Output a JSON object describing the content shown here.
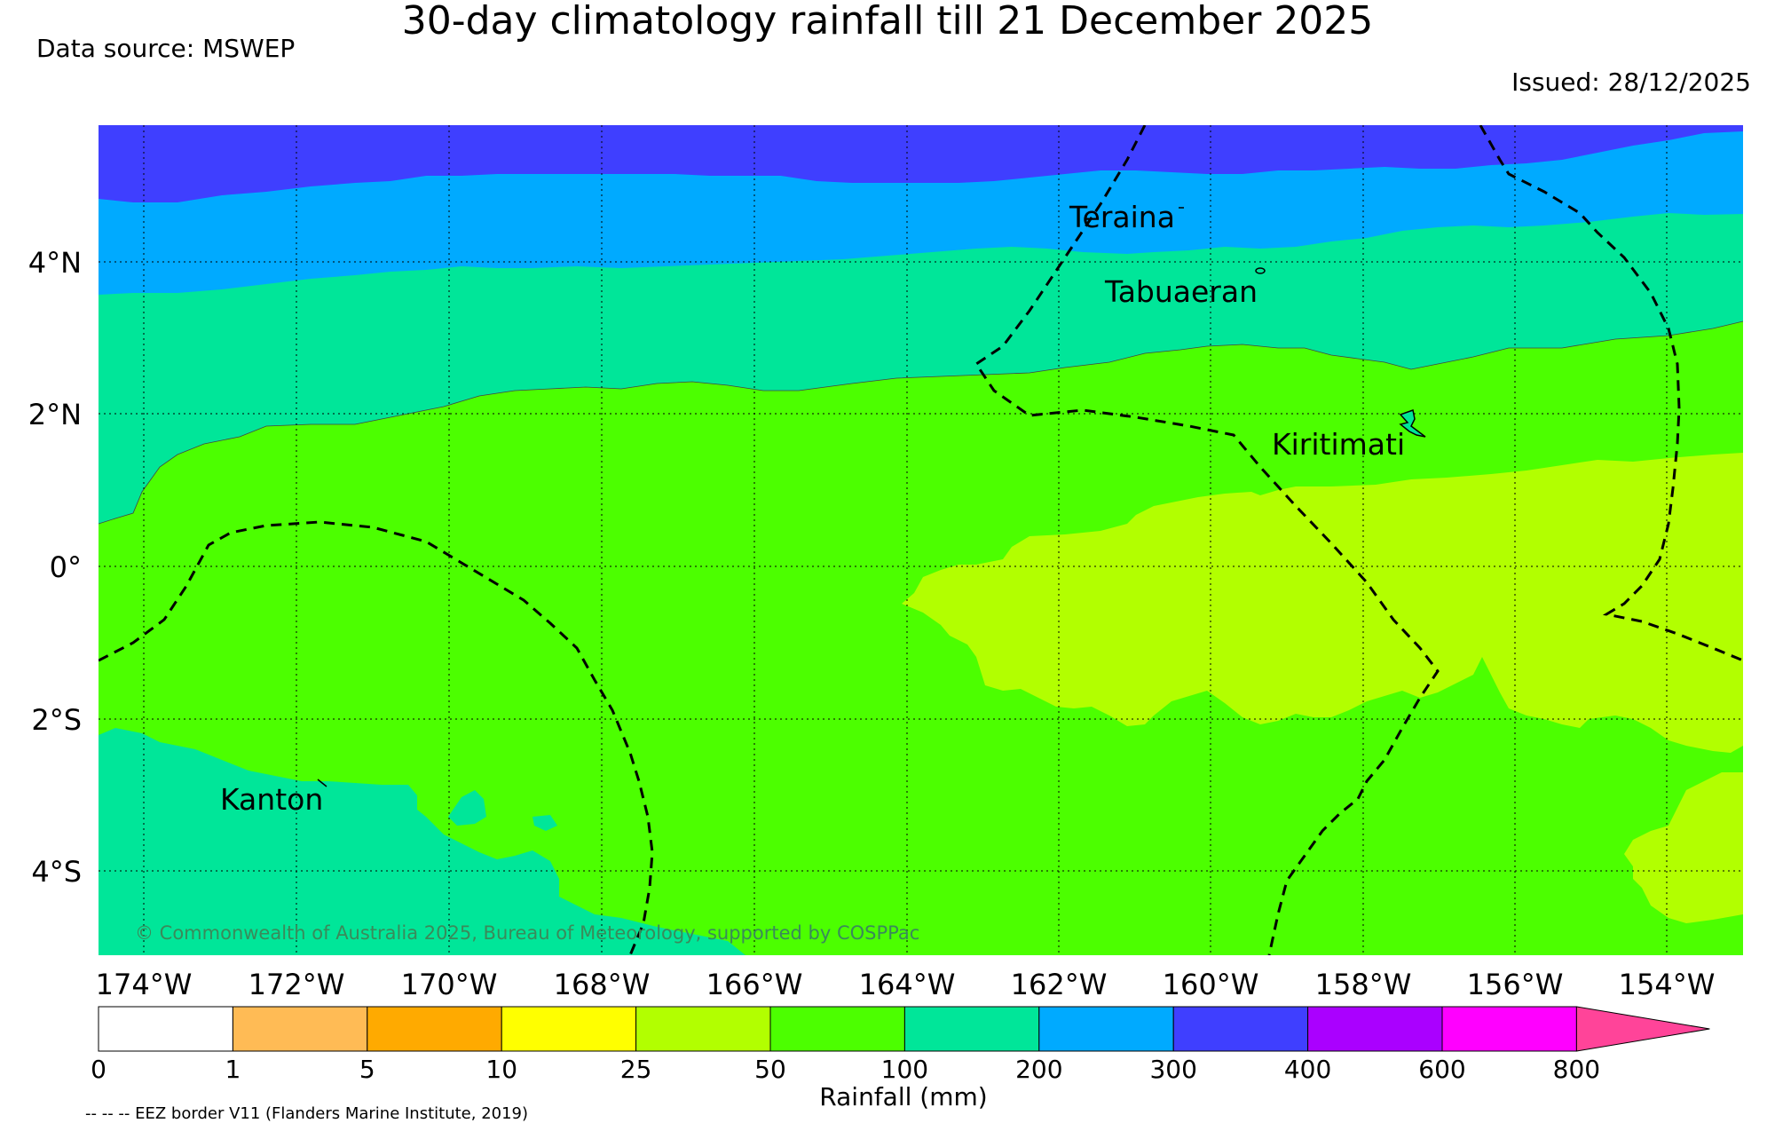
{
  "title": "30-day climatology rainfall till 21 December 2025",
  "data_source": "Data source: MSWEP",
  "issued": "Issued: 28/12/2025",
  "copyright": "© Commonwealth of Australia 2025, Bureau of Meteorology, supported by COSPPac",
  "eez_note": "-- -- -- EEZ border V11 (Flanders Marine Institute, 2019)",
  "colorbar_label": "Rainfall (mm)",
  "colorbar_ticks": [
    "0",
    "1",
    "5",
    "10",
    "25",
    "50",
    "100",
    "200",
    "300",
    "400",
    "600",
    "800"
  ],
  "colorbar_colors": [
    "#ffffff",
    "#ffbb55",
    "#ffaa00",
    "#ffff00",
    "#b2ff00",
    "#4cff00",
    "#00e699",
    "#00aaff",
    "#3f3fff",
    "#aa00ff",
    "#ff00ff",
    "#ff4499"
  ],
  "lon_labels": [
    "174°W",
    "172°W",
    "170°W",
    "168°W",
    "166°W",
    "164°W",
    "162°W",
    "160°W",
    "158°W",
    "156°W",
    "154°W"
  ],
  "lat_labels": [
    "4°N",
    "2°N",
    "0°",
    "2°S",
    "4°S"
  ],
  "places": [
    "Teraina",
    "Tabuaeran",
    "Kiritimati",
    "Kanton"
  ],
  "colors": {
    "band_300_400": "#3f3fff",
    "band_200_300": "#00aaff",
    "band_100_200": "#00e699",
    "band_50_100": "#4cff00",
    "band_25_50": "#b2ff00"
  }
}
